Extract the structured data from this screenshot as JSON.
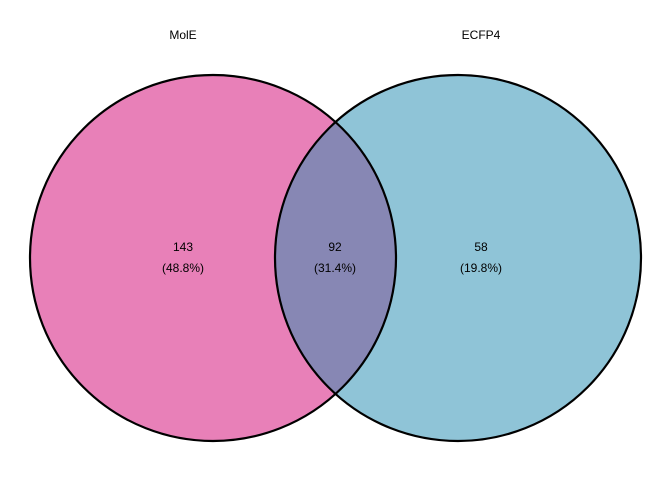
{
  "chart_data": {
    "type": "venn",
    "sets": [
      {
        "name": "MolE",
        "color": "#e880b8"
      },
      {
        "name": "ECFP4",
        "color": "#8fc4d7"
      }
    ],
    "overlap_color": "#8787b4",
    "counts": {
      "values": [
        143,
        92,
        58
      ]
    },
    "percents": {
      "values": [
        48.8,
        31.4,
        19.8
      ],
      "value_labels": [
        "(48.8%)",
        "(31.4%)",
        "(19.8%)"
      ]
    }
  }
}
